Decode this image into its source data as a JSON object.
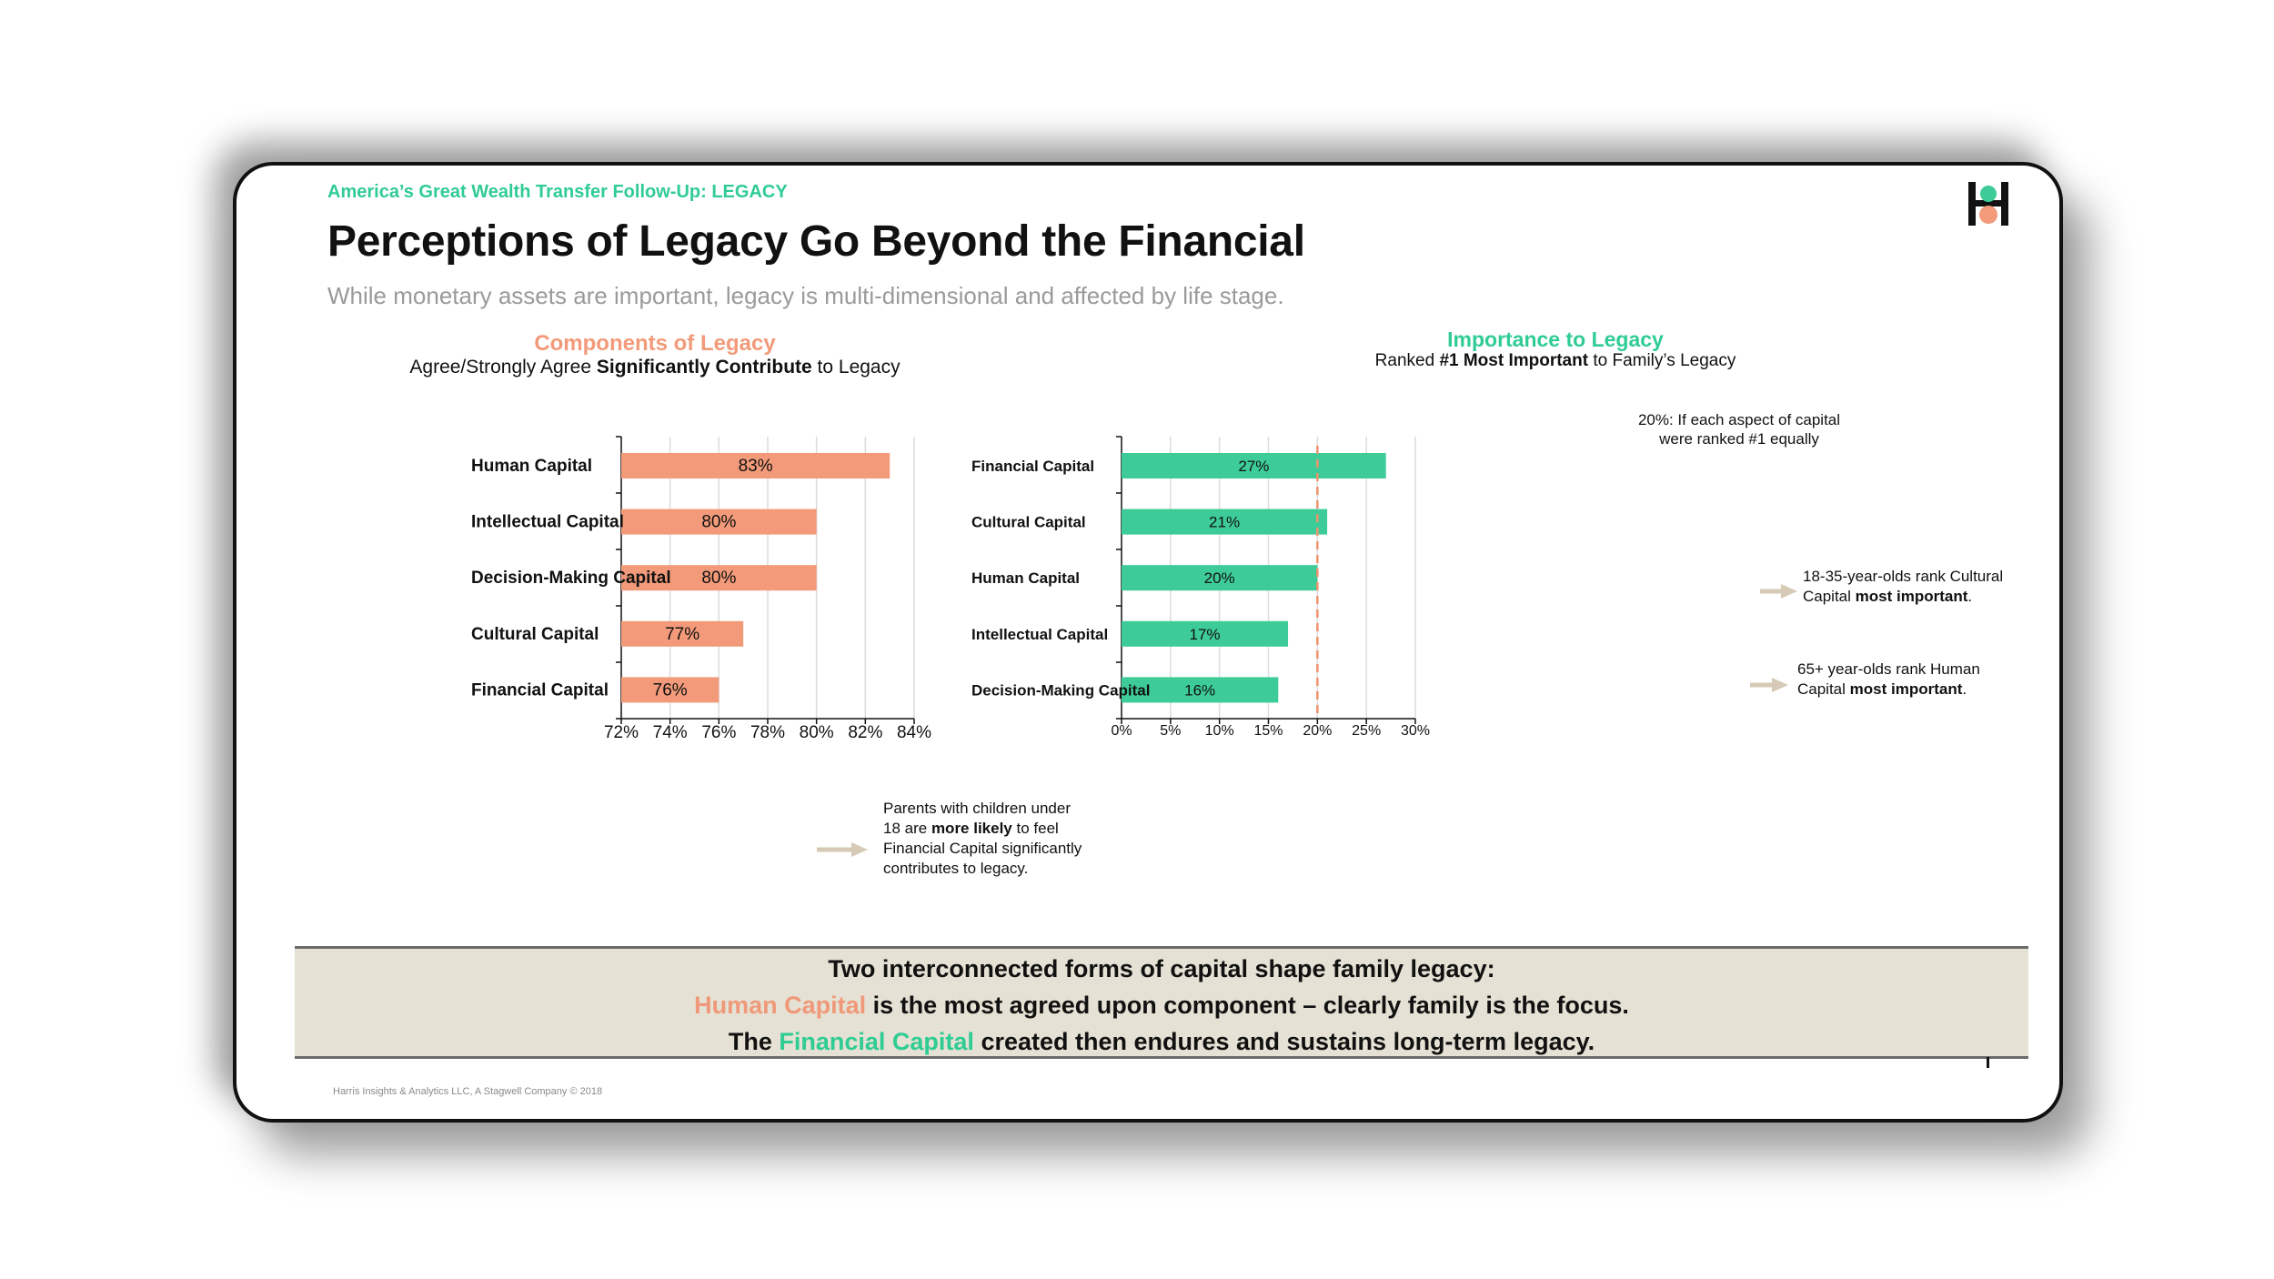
{
  "header": {
    "supertitle": "America’s Great Wealth Transfer Follow-Up: LEGACY",
    "title": "Perceptions of Legacy Go Beyond the Financial",
    "subtitle": "While monetary assets are important, legacy is multi-dimensional and affected by life stage."
  },
  "left_panel": {
    "title": "Components of Legacy",
    "subtitle_pre": "Agree/Strongly Agree ",
    "subtitle_bold": "Significantly Contribute",
    "subtitle_post": " to Legacy",
    "callout_1": "Parents with children under",
    "callout_2a": "18 are ",
    "callout_2b": "more likely",
    "callout_2c": " to feel",
    "callout_3": "Financial Capital significantly",
    "callout_4": "contributes to legacy."
  },
  "right_panel": {
    "title": "Importance to Legacy",
    "subtitle_pre": "Ranked ",
    "subtitle_bold": "#1 Most Important",
    "subtitle_post": " to Family’s Legacy",
    "ref_note_1": "20%: If each aspect of capital",
    "ref_note_2": "were ranked #1 equally",
    "callout_a_1": "18-35-year-olds rank Cultural",
    "callout_a_2a": "Capital ",
    "callout_a_2b": "most important",
    "callout_a_2c": ".",
    "callout_b_1": "65+ year-olds rank Human",
    "callout_b_2a": "Capital ",
    "callout_b_2b": "most important",
    "callout_b_2c": "."
  },
  "chart_data": [
    {
      "type": "bar",
      "orientation": "horizontal",
      "title": "Components of Legacy",
      "categories": [
        "Human Capital",
        "Intellectual Capital",
        "Decision-Making Capital",
        "Cultural Capital",
        "Financial Capital"
      ],
      "values": [
        83,
        80,
        80,
        77,
        76
      ],
      "value_labels": [
        "83%",
        "80%",
        "80%",
        "77%",
        "76%"
      ],
      "xlim": [
        72,
        84
      ],
      "xticks": [
        72,
        74,
        76,
        78,
        80,
        82,
        84
      ],
      "xtick_labels": [
        "72%",
        "74%",
        "76%",
        "78%",
        "80%",
        "82%",
        "84%"
      ],
      "grid": true,
      "color": "#f29a79"
    },
    {
      "type": "bar",
      "orientation": "horizontal",
      "title": "Importance to Legacy",
      "categories": [
        "Financial Capital",
        "Cultural Capital",
        "Human Capital",
        "Intellectual Capital",
        "Decision-Making Capital"
      ],
      "values": [
        27,
        21,
        20,
        17,
        16
      ],
      "value_labels": [
        "27%",
        "21%",
        "20%",
        "17%",
        "16%"
      ],
      "xlim": [
        0,
        30
      ],
      "xticks": [
        0,
        5,
        10,
        15,
        20,
        25,
        30
      ],
      "xtick_labels": [
        "0%",
        "5%",
        "10%",
        "15%",
        "20%",
        "25%",
        "30%"
      ],
      "reference_line": 20,
      "grid": true,
      "color": "#3dcc97"
    }
  ],
  "footer": {
    "line1": "Two interconnected forms of capital shape family legacy:",
    "line2_hl": "Human Capital",
    "line2_rest": " is the most agreed upon component – clearly family is the focus.",
    "line3_pre": "The ",
    "line3_hl": "Financial Capital",
    "line3_rest": " created then endures and sustains long-term legacy.",
    "copyright": "Harris Insights & Analytics LLC, A Stagwell Company © 2018"
  },
  "colors": {
    "orange": "#f29a79",
    "green": "#3dcc97",
    "accent_text_green": "#2fcc94",
    "reference_line": "#f0936f",
    "arrow": "#d6c9b6",
    "footer_bg": "#e5e1d4"
  }
}
